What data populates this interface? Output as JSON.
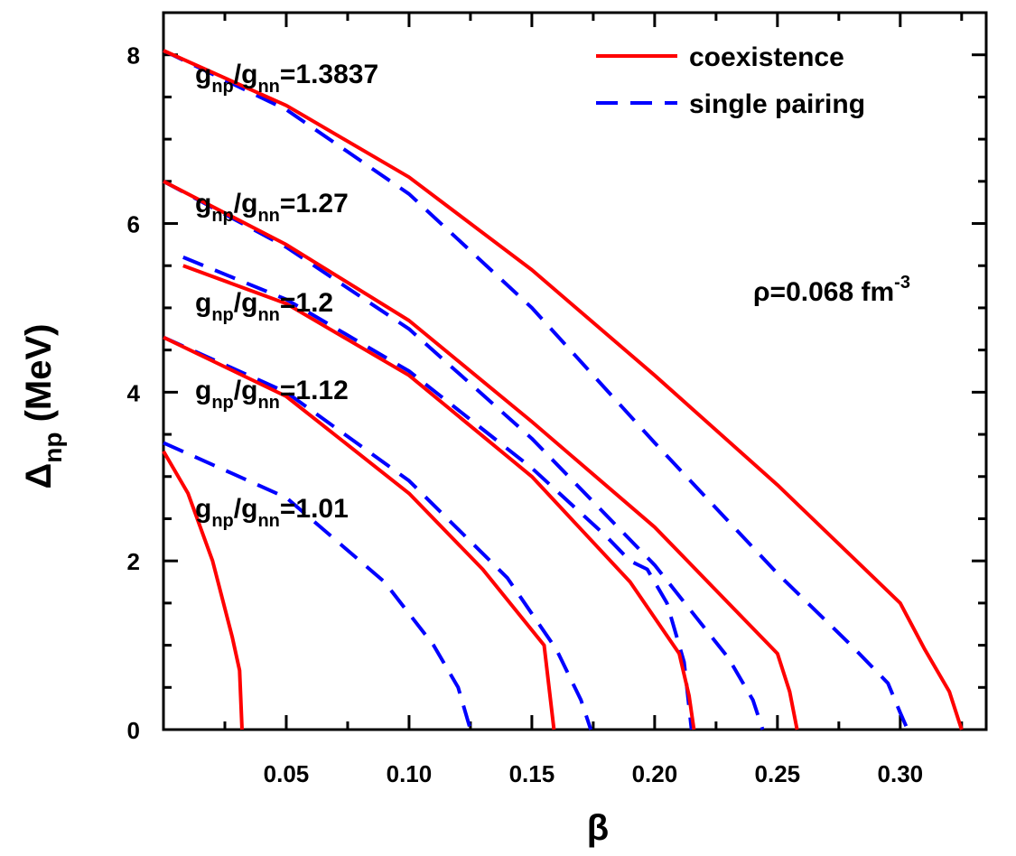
{
  "chart_data": {
    "type": "line",
    "xlabel": "β",
    "ylabel_main": "Δ",
    "ylabel_sub": "np",
    "ylabel_unit": " (MeV)",
    "xlim": [
      0,
      0.335
    ],
    "ylim": [
      0,
      8.5
    ],
    "xticks": [
      0.05,
      0.1,
      0.15,
      0.2,
      0.25,
      0.3
    ],
    "xtick_labels": [
      "0.05",
      "0.10",
      "0.15",
      "0.20",
      "0.25",
      "0.30"
    ],
    "yticks": [
      0,
      2,
      4,
      6,
      8
    ],
    "ytick_labels": [
      "0",
      "2",
      "4",
      "6",
      "8"
    ],
    "legend": {
      "position": "top-right",
      "items": [
        {
          "label": "coexistence",
          "color": "#ff0000",
          "style": "solid"
        },
        {
          "label": "single pairing",
          "color": "#0000ff",
          "style": "dashed"
        }
      ]
    },
    "density_label": {
      "main": "ρ=0.068 fm",
      "sup": "-3"
    },
    "curve_labels": [
      {
        "g1": "g",
        "s1": "np",
        "g2": "/g",
        "s2": "nn",
        "value": "=1.3837"
      },
      {
        "g1": "g",
        "s1": "np",
        "g2": "/g",
        "s2": "nn",
        "value": "=1.27"
      },
      {
        "g1": "g",
        "s1": "np",
        "g2": "/g",
        "s2": "nn",
        "value": "=1.2"
      },
      {
        "g1": "g",
        "s1": "np",
        "g2": "/g",
        "s2": "nn",
        "value": "=1.12"
      },
      {
        "g1": "g",
        "s1": "np",
        "g2": "/g",
        "s2": "nn",
        "value": "=1.01"
      }
    ],
    "series": [
      {
        "type": "coexistence",
        "ratio": "1.3837",
        "color": "#ff0000",
        "x": [
          0,
          0.05,
          0.1,
          0.15,
          0.2,
          0.25,
          0.3,
          0.31,
          0.32,
          0.325
        ],
        "y": [
          8.05,
          7.4,
          6.55,
          5.45,
          4.2,
          2.9,
          1.5,
          0.95,
          0.45,
          0
        ]
      },
      {
        "type": "single pairing",
        "ratio": "1.3837",
        "color": "#0000ff",
        "x": [
          0,
          0.05,
          0.1,
          0.15,
          0.2,
          0.25,
          0.28,
          0.295,
          0.3,
          0.303
        ],
        "y": [
          8.05,
          7.35,
          6.35,
          5.0,
          3.4,
          1.85,
          1.0,
          0.55,
          0.2,
          0
        ]
      },
      {
        "type": "coexistence",
        "ratio": "1.27",
        "color": "#ff0000",
        "x": [
          0,
          0.05,
          0.1,
          0.15,
          0.2,
          0.24,
          0.25,
          0.255,
          0.258
        ],
        "y": [
          6.5,
          5.75,
          4.85,
          3.65,
          2.4,
          1.2,
          0.9,
          0.45,
          0
        ]
      },
      {
        "type": "single pairing",
        "ratio": "1.27",
        "color": "#0000ff",
        "x": [
          0,
          0.05,
          0.1,
          0.15,
          0.2,
          0.23,
          0.24,
          0.244
        ],
        "y": [
          6.5,
          5.72,
          4.75,
          3.45,
          1.95,
          0.85,
          0.35,
          0
        ]
      },
      {
        "type": "coexistence",
        "ratio": "1.2",
        "color": "#ff0000",
        "x": [
          0.008,
          0.05,
          0.1,
          0.15,
          0.19,
          0.21,
          0.214,
          0.216
        ],
        "y": [
          5.5,
          5.05,
          4.2,
          3.0,
          1.75,
          0.9,
          0.4,
          0
        ]
      },
      {
        "type": "single pairing",
        "ratio": "1.2",
        "color": "#0000ff",
        "x": [
          0.008,
          0.05,
          0.1,
          0.15,
          0.18,
          0.19,
          0.197,
          0.205,
          0.212,
          0.215
        ],
        "y": [
          5.6,
          5.1,
          4.25,
          3.1,
          2.3,
          2.0,
          1.9,
          1.5,
          0.8,
          0
        ]
      },
      {
        "type": "coexistence",
        "ratio": "1.12",
        "color": "#ff0000",
        "x": [
          0,
          0.05,
          0.1,
          0.13,
          0.155,
          0.159
        ],
        "y": [
          4.65,
          3.95,
          2.8,
          1.9,
          1.0,
          0
        ]
      },
      {
        "type": "single pairing",
        "ratio": "1.12",
        "color": "#0000ff",
        "x": [
          0,
          0.05,
          0.1,
          0.14,
          0.16,
          0.17,
          0.174
        ],
        "y": [
          4.65,
          4.0,
          2.95,
          1.8,
          0.95,
          0.35,
          0
        ]
      },
      {
        "type": "coexistence",
        "ratio": "1.01",
        "color": "#ff0000",
        "x": [
          0,
          0.01,
          0.02,
          0.028,
          0.031,
          0.032
        ],
        "y": [
          3.3,
          2.8,
          2.0,
          1.1,
          0.7,
          0
        ]
      },
      {
        "type": "single pairing",
        "ratio": "1.01",
        "color": "#0000ff",
        "x": [
          0,
          0.05,
          0.09,
          0.11,
          0.12,
          0.125
        ],
        "y": [
          3.4,
          2.75,
          1.75,
          1.0,
          0.5,
          0
        ]
      }
    ]
  }
}
